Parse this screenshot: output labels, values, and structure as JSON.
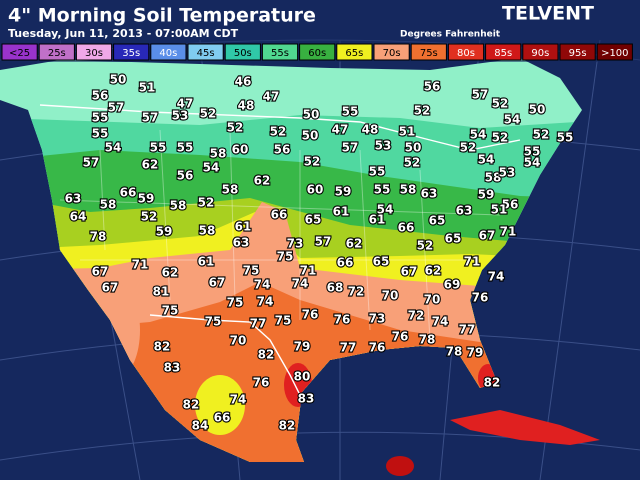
{
  "header": {
    "title": "4\" Morning Soil Temperature",
    "subtitle": "Tuesday, Jun 11, 2013 - 07:00AM CDT",
    "brand": "TELVENT",
    "units": "Degrees Fahrenheit"
  },
  "legend": [
    {
      "label": "<25",
      "color": "#9933cc"
    },
    {
      "label": "25s",
      "color": "#c070c8"
    },
    {
      "label": "30s",
      "color": "#f0a8e8"
    },
    {
      "label": "35s",
      "color": "#2828b8"
    },
    {
      "label": "40s",
      "color": "#5a8ee8"
    },
    {
      "label": "45s",
      "color": "#80ccf0"
    },
    {
      "label": "50s",
      "color": "#30c8a8"
    },
    {
      "label": "55s",
      "color": "#50d890"
    },
    {
      "label": "60s",
      "color": "#38b040"
    },
    {
      "label": "65s",
      "color": "#f0f020"
    },
    {
      "label": "70s",
      "color": "#f8a078"
    },
    {
      "label": "75s",
      "color": "#f07030"
    },
    {
      "label": "80s",
      "color": "#e03020"
    },
    {
      "label": "85s",
      "color": "#d01818"
    },
    {
      "label": "90s",
      "color": "#b01010"
    },
    {
      "label": "95s",
      "color": "#900808"
    },
    {
      "label": ">100",
      "color": "#700000"
    }
  ],
  "stations": [
    50,
    51,
    46,
    47,
    56,
    56,
    57,
    47,
    52,
    48,
    57,
    52,
    50,
    55,
    57,
    53,
    50,
    55,
    52,
    54,
    55,
    52,
    52,
    50,
    47,
    48,
    51,
    54,
    52,
    52,
    55,
    54,
    55,
    55,
    58,
    60,
    56,
    57,
    50,
    52,
    55,
    57,
    62,
    56,
    54,
    52,
    53,
    52,
    54,
    54,
    58,
    53,
    62,
    58,
    60,
    59,
    55,
    58,
    63,
    59,
    56,
    63,
    66,
    59,
    58,
    58,
    52,
    55,
    54,
    64,
    52,
    66,
    65,
    61,
    61,
    66,
    65,
    63,
    51,
    78,
    59,
    58,
    61,
    63,
    73,
    57,
    62,
    52,
    65,
    67,
    71,
    75,
    61,
    66,
    65,
    67,
    62,
    71,
    67,
    71,
    62,
    75,
    71,
    74,
    67,
    81,
    67,
    74,
    74,
    68,
    72,
    70,
    69,
    70,
    76,
    75,
    75,
    74,
    77,
    75,
    76,
    76,
    73,
    72,
    74,
    75,
    77,
    82,
    70,
    82,
    79,
    77,
    76,
    76,
    78,
    78,
    79,
    83,
    80,
    76,
    82,
    82,
    74,
    83,
    84,
    66,
    82
  ]
}
